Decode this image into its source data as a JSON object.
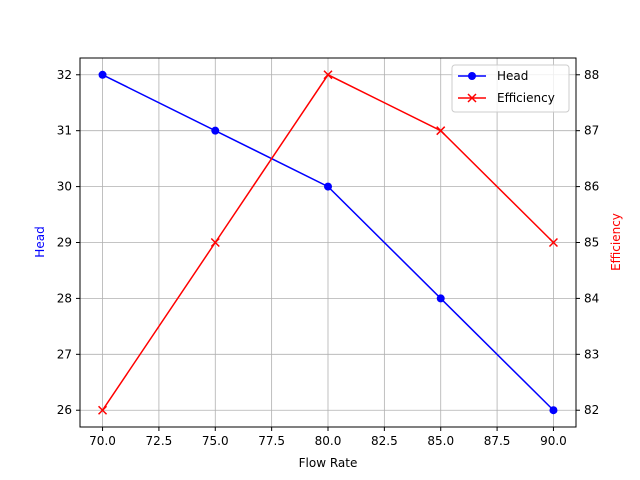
{
  "chart_data": {
    "type": "line",
    "title": "",
    "xlabel": "Flow Rate",
    "ylabel": "Head",
    "ylabel_right": "Efficiency",
    "x": [
      70,
      75,
      80,
      85,
      90
    ],
    "xlim": [
      69,
      91
    ],
    "ylim": [
      25.7,
      32.3
    ],
    "ylim_right": [
      81.7,
      88.3
    ],
    "grid": true,
    "legend_position": "upper right",
    "x_ticks": [
      "70.0",
      "72.5",
      "75.0",
      "77.5",
      "80.0",
      "82.5",
      "85.0",
      "87.5",
      "90.0"
    ],
    "y_ticks": [
      "26",
      "27",
      "28",
      "29",
      "30",
      "31",
      "32"
    ],
    "y_ticks_right": [
      "82",
      "83",
      "84",
      "85",
      "86",
      "87",
      "88"
    ],
    "series": [
      {
        "name": "Head",
        "axis": "left",
        "color": "#0000ff",
        "marker": "circle",
        "values": [
          32,
          31,
          30,
          28,
          26
        ]
      },
      {
        "name": "Efficiency",
        "axis": "right",
        "color": "#ff0000",
        "marker": "x",
        "values": [
          82,
          85,
          88,
          87,
          85
        ]
      }
    ]
  },
  "legend": {
    "items": [
      {
        "label": "Head",
        "color": "#0000ff"
      },
      {
        "label": "Efficiency",
        "color": "#ff0000"
      }
    ]
  }
}
